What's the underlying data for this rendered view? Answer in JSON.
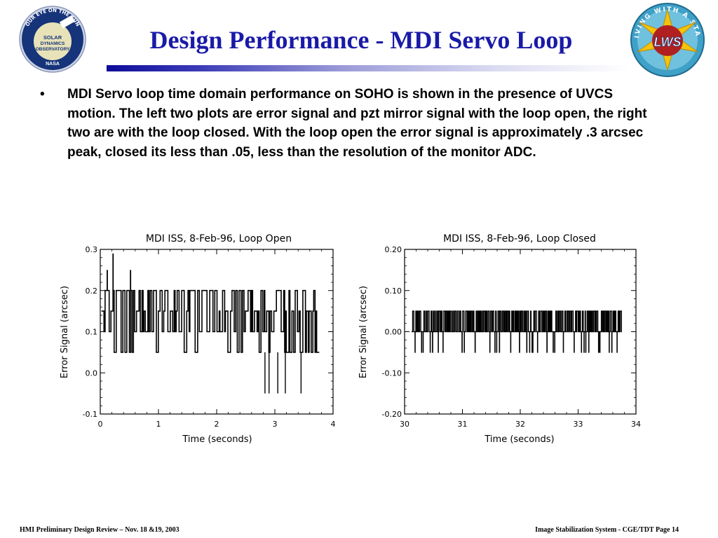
{
  "slide": {
    "title": "Design Performance - MDI Servo Loop",
    "bullet": "MDI Servo loop time domain performance on SOHO is shown in the presence of UVCS motion.  The left two plots are error signal and pzt mirror signal with the loop open, the right two are with the loop closed.  With the loop open the error signal is approximately .3 arcsec peak, closed its less than .05, less than the resolution of the monitor ADC.",
    "bullet_marker": "•",
    "footer_left": "HMI Preliminary Design Review – Nov. 18 &19, 2003",
    "footer_right": "Image Stabilization System - CGE/TDT   Page 14"
  },
  "logos": {
    "sdo": {
      "ring_text": "OUR EYE ON THE SUN",
      "lines": [
        "SOLAR",
        "DYNAMICS",
        "OBSERVATORY"
      ],
      "bottom": "NASA"
    },
    "lws": {
      "ring_text": "LIVING WITH A STAR",
      "center": "LWS"
    }
  },
  "colors": {
    "title": "#1a1aa8",
    "sdo_blue": "#16347a",
    "lws_red": "#b02020",
    "lws_yellow": "#f2c40c"
  },
  "chart_data": [
    {
      "type": "line",
      "title": "MDI ISS, 8-Feb-96, Loop Open",
      "xlabel": "Time (seconds)",
      "ylabel": "Error Signal (arcsec)",
      "xlim": [
        0,
        4
      ],
      "ylim": [
        -0.1,
        0.3
      ],
      "xticks": [
        "0",
        "1",
        "2",
        "3",
        "4"
      ],
      "yticks": [
        "-0.1",
        "0.0",
        "0.1",
        "0.2",
        "0.3"
      ],
      "x_end": 3.75,
      "levels": [
        0.05,
        0.1,
        0.15,
        0.2
      ],
      "peak_spikes": [
        {
          "x": 0.22,
          "y": 0.29
        },
        {
          "x": 0.12,
          "y": 0.25
        },
        {
          "x": 0.52,
          "y": 0.25
        }
      ],
      "negative_spikes": [
        {
          "x": 2.83,
          "y": -0.05
        },
        {
          "x": 2.9,
          "y": -0.05
        },
        {
          "x": 3.05,
          "y": -0.05
        },
        {
          "x": 3.18,
          "y": -0.05
        },
        {
          "x": 3.45,
          "y": -0.05
        }
      ],
      "grid": false
    },
    {
      "type": "line",
      "title": "MDI ISS, 8-Feb-96, Loop Closed",
      "xlabel": "Time (seconds)",
      "ylabel": "Error Signal (arcsec)",
      "xlim": [
        30,
        34
      ],
      "ylim": [
        -0.2,
        0.2
      ],
      "xticks": [
        "30",
        "31",
        "32",
        "33",
        "34"
      ],
      "yticks": [
        "-0.20",
        "-0.10",
        "0.00",
        "0.10",
        "0.20"
      ],
      "x_start": 30.12,
      "x_end": 33.75,
      "levels": [
        -0.05,
        0.0,
        0.05
      ],
      "grid": false
    }
  ]
}
